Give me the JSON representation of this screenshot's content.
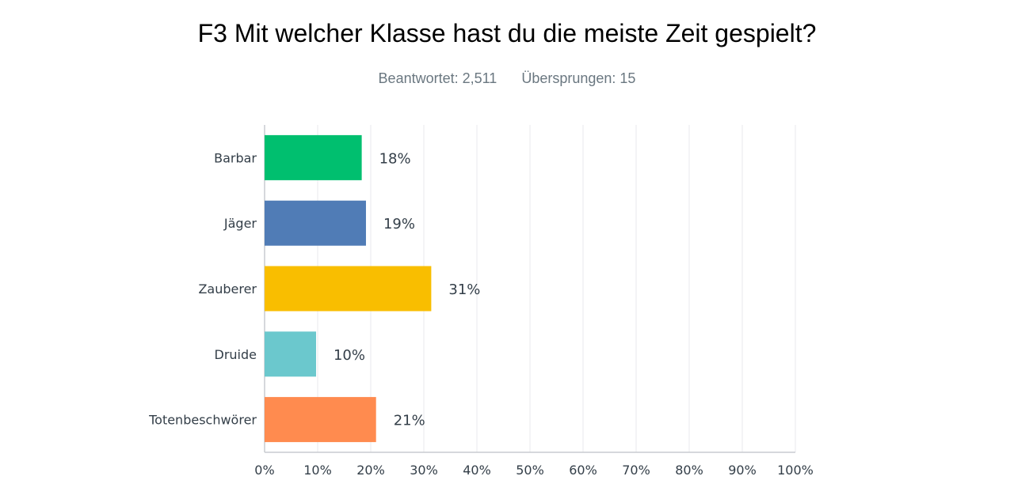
{
  "header": {
    "title": "F3 Mit welcher Klasse hast du die meiste Zeit gespielt?",
    "answered": "Beantwortet: 2,511",
    "skipped": "Übersprungen: 15"
  },
  "chart_data": {
    "type": "bar",
    "orientation": "horizontal",
    "title": "F3 Mit welcher Klasse hast du die meiste Zeit gespielt?",
    "categories": [
      "Barbar",
      "Jäger",
      "Zauberer",
      "Druide",
      "Totenbeschwörer"
    ],
    "values": [
      18.3,
      19.1,
      31.4,
      9.7,
      21.0
    ],
    "value_labels": [
      "18%",
      "19%",
      "31%",
      "10%",
      "21%"
    ],
    "colors": [
      "#00bf6f",
      "#507cb6",
      "#f9be00",
      "#6bc8cd",
      "#ff8b4f"
    ],
    "xlim": [
      0,
      100
    ],
    "x_ticks": [
      "0%",
      "10%",
      "20%",
      "30%",
      "40%",
      "50%",
      "60%",
      "70%",
      "80%",
      "90%",
      "100%"
    ],
    "grid": true
  }
}
